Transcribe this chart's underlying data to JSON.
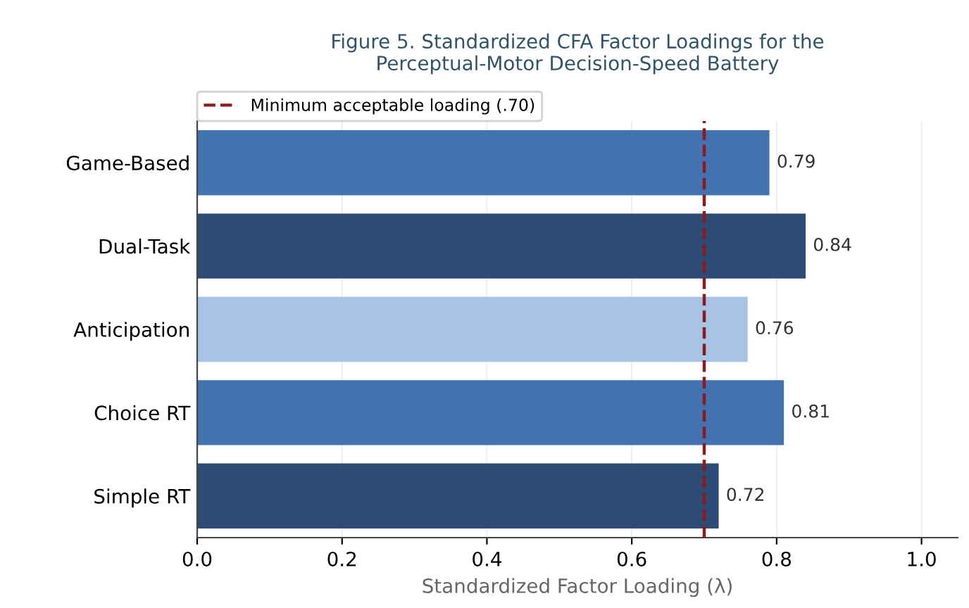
{
  "chart_data": {
    "type": "bar",
    "orientation": "horizontal",
    "title": "Figure 5. Standardized CFA Factor Loadings for the\nPerceptual-Motor Decision-Speed Battery",
    "xlabel": "Standardized Factor Loading (λ)",
    "categories": [
      "Game-Based",
      "Dual-Task",
      "Anticipation",
      "Choice RT",
      "Simple RT"
    ],
    "values": [
      0.79,
      0.84,
      0.76,
      0.81,
      0.72
    ],
    "colors": [
      "#4372b0",
      "#2c4b75",
      "#a7c3e5",
      "#4372b0",
      "#2c4b75"
    ],
    "data_labels": true,
    "xlim": [
      0,
      1.05
    ],
    "xticks": [
      {
        "value": 0,
        "label": "0.0"
      },
      0.2,
      0.4,
      0.6,
      0.8,
      {
        "value": 1,
        "label": "1.0"
      }
    ],
    "grid": "x",
    "ref_lines": [
      {
        "axis": "x",
        "value": 0.7,
        "label": "Minimum acceptable loading (.70)",
        "color": "#8b1a1a",
        "line_style": "dashed"
      }
    ],
    "legend": "top left"
  }
}
